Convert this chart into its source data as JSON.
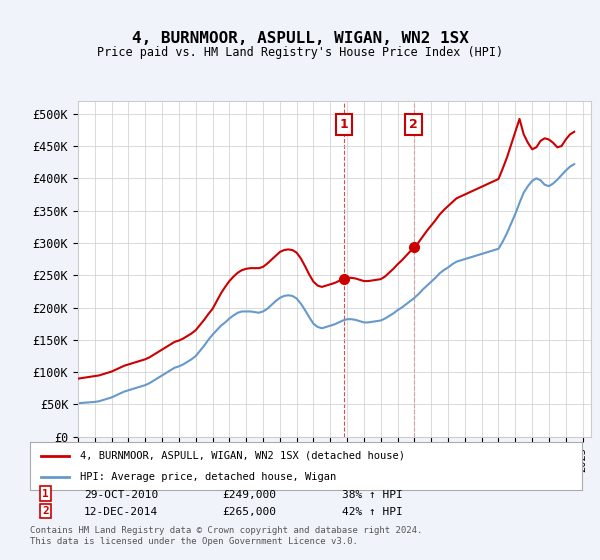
{
  "title": "4, BURNMOOR, ASPULL, WIGAN, WN2 1SX",
  "subtitle": "Price paid vs. HM Land Registry's House Price Index (HPI)",
  "ylabel_ticks": [
    "£0",
    "£50K",
    "£100K",
    "£150K",
    "£200K",
    "£250K",
    "£300K",
    "£350K",
    "£400K",
    "£450K",
    "£500K"
  ],
  "ytick_values": [
    0,
    50000,
    100000,
    150000,
    200000,
    250000,
    300000,
    350000,
    400000,
    450000,
    500000
  ],
  "ylim": [
    0,
    520000
  ],
  "xlim_start": 1995.0,
  "xlim_end": 2025.5,
  "hpi_color": "#6699cc",
  "sale_color": "#cc0000",
  "marker1_date": 2010.83,
  "marker1_label": "1",
  "marker1_price": 249000,
  "marker1_text": "29-OCT-2010",
  "marker1_pct": "38% ↑ HPI",
  "marker2_date": 2014.95,
  "marker2_label": "2",
  "marker2_price": 265000,
  "marker2_text": "12-DEC-2014",
  "marker2_pct": "42% ↑ HPI",
  "legend_label_red": "4, BURNMOOR, ASPULL, WIGAN, WN2 1SX (detached house)",
  "legend_label_blue": "HPI: Average price, detached house, Wigan",
  "footer_line1": "Contains HM Land Registry data © Crown copyright and database right 2024.",
  "footer_line2": "This data is licensed under the Open Government Licence v3.0.",
  "background_color": "#f0f4fa",
  "plot_bg_color": "#ffffff",
  "hpi_data_x": [
    1995.0,
    1995.25,
    1995.5,
    1995.75,
    1996.0,
    1996.25,
    1996.5,
    1996.75,
    1997.0,
    1997.25,
    1997.5,
    1997.75,
    1998.0,
    1998.25,
    1998.5,
    1998.75,
    1999.0,
    1999.25,
    1999.5,
    1999.75,
    2000.0,
    2000.25,
    2000.5,
    2000.75,
    2001.0,
    2001.25,
    2001.5,
    2001.75,
    2002.0,
    2002.25,
    2002.5,
    2002.75,
    2003.0,
    2003.25,
    2003.5,
    2003.75,
    2004.0,
    2004.25,
    2004.5,
    2004.75,
    2005.0,
    2005.25,
    2005.5,
    2005.75,
    2006.0,
    2006.25,
    2006.5,
    2006.75,
    2007.0,
    2007.25,
    2007.5,
    2007.75,
    2008.0,
    2008.25,
    2008.5,
    2008.75,
    2009.0,
    2009.25,
    2009.5,
    2009.75,
    2010.0,
    2010.25,
    2010.5,
    2010.75,
    2011.0,
    2011.25,
    2011.5,
    2011.75,
    2012.0,
    2012.25,
    2012.5,
    2012.75,
    2013.0,
    2013.25,
    2013.5,
    2013.75,
    2014.0,
    2014.25,
    2014.5,
    2014.75,
    2015.0,
    2015.25,
    2015.5,
    2015.75,
    2016.0,
    2016.25,
    2016.5,
    2016.75,
    2017.0,
    2017.25,
    2017.5,
    2017.75,
    2018.0,
    2018.25,
    2018.5,
    2018.75,
    2019.0,
    2019.25,
    2019.5,
    2019.75,
    2020.0,
    2020.25,
    2020.5,
    2020.75,
    2021.0,
    2021.25,
    2021.5,
    2021.75,
    2022.0,
    2022.25,
    2022.5,
    2022.75,
    2023.0,
    2023.25,
    2023.5,
    2023.75,
    2024.0,
    2024.25,
    2024.5
  ],
  "hpi_data_y": [
    52000,
    52500,
    53000,
    53500,
    54000,
    55000,
    57000,
    59000,
    61000,
    64000,
    67000,
    70000,
    72000,
    74000,
    76000,
    78000,
    80000,
    83000,
    87000,
    91000,
    95000,
    99000,
    103000,
    107000,
    109000,
    112000,
    116000,
    120000,
    125000,
    133000,
    141000,
    150000,
    158000,
    165000,
    172000,
    177000,
    183000,
    188000,
    192000,
    194000,
    194000,
    194000,
    193000,
    192000,
    194000,
    198000,
    204000,
    210000,
    215000,
    218000,
    219000,
    218000,
    214000,
    206000,
    196000,
    185000,
    175000,
    170000,
    168000,
    170000,
    172000,
    174000,
    177000,
    180000,
    182000,
    182000,
    181000,
    179000,
    177000,
    177000,
    178000,
    179000,
    180000,
    183000,
    187000,
    191000,
    196000,
    200000,
    205000,
    210000,
    215000,
    221000,
    228000,
    234000,
    240000,
    246000,
    253000,
    258000,
    262000,
    267000,
    271000,
    273000,
    275000,
    277000,
    279000,
    281000,
    283000,
    285000,
    287000,
    289000,
    291000,
    302000,
    315000,
    330000,
    345000,
    362000,
    378000,
    388000,
    396000,
    400000,
    397000,
    390000,
    388000,
    392000,
    398000,
    405000,
    412000,
    418000,
    422000
  ],
  "red_data_x": [
    1995.0,
    1995.25,
    1995.5,
    1995.75,
    1996.0,
    1996.25,
    1996.5,
    1996.75,
    1997.0,
    1997.25,
    1997.5,
    1997.75,
    1998.0,
    1998.25,
    1998.5,
    1998.75,
    1999.0,
    1999.25,
    1999.5,
    1999.75,
    2000.0,
    2000.25,
    2000.5,
    2000.75,
    2001.0,
    2001.25,
    2001.5,
    2001.75,
    2002.0,
    2002.25,
    2002.5,
    2002.75,
    2003.0,
    2003.25,
    2003.5,
    2003.75,
    2004.0,
    2004.25,
    2004.5,
    2004.75,
    2005.0,
    2005.25,
    2005.5,
    2005.75,
    2006.0,
    2006.25,
    2006.5,
    2006.75,
    2007.0,
    2007.25,
    2007.5,
    2007.75,
    2008.0,
    2008.25,
    2008.5,
    2008.75,
    2009.0,
    2009.25,
    2009.5,
    2009.75,
    2010.0,
    2010.25,
    2010.5,
    2010.75,
    2011.0,
    2011.25,
    2011.5,
    2011.75,
    2012.0,
    2012.25,
    2012.5,
    2012.75,
    2013.0,
    2013.25,
    2013.5,
    2013.75,
    2014.0,
    2014.25,
    2014.5,
    2014.75,
    2015.0,
    2015.25,
    2015.5,
    2015.75,
    2016.0,
    2016.25,
    2016.5,
    2016.75,
    2017.0,
    2017.25,
    2017.5,
    2017.75,
    2018.0,
    2018.25,
    2018.5,
    2018.75,
    2019.0,
    2019.25,
    2019.5,
    2019.75,
    2020.0,
    2020.25,
    2020.5,
    2020.75,
    2021.0,
    2021.25,
    2021.5,
    2021.75,
    2022.0,
    2022.25,
    2022.5,
    2022.75,
    2023.0,
    2023.25,
    2023.5,
    2023.75,
    2024.0,
    2024.25,
    2024.5
  ],
  "red_data_y": [
    90000,
    91000,
    92000,
    93000,
    94000,
    95000,
    97000,
    99000,
    101000,
    104000,
    107000,
    110000,
    112000,
    114000,
    116000,
    118000,
    120000,
    123000,
    127000,
    131000,
    135000,
    139000,
    143000,
    147000,
    149000,
    152000,
    156000,
    160000,
    165000,
    173000,
    181000,
    190000,
    198000,
    210000,
    222000,
    232000,
    241000,
    248000,
    254000,
    258000,
    260000,
    261000,
    261000,
    261000,
    263000,
    268000,
    274000,
    280000,
    286000,
    289000,
    290000,
    289000,
    285000,
    276000,
    264000,
    251000,
    240000,
    234000,
    232000,
    234000,
    236000,
    238000,
    241000,
    244000,
    246000,
    246000,
    245000,
    243000,
    241000,
    241000,
    242000,
    243000,
    244000,
    248000,
    254000,
    260000,
    267000,
    273000,
    280000,
    287000,
    293000,
    301000,
    310000,
    319000,
    327000,
    335000,
    344000,
    351000,
    357000,
    363000,
    369000,
    372000,
    375000,
    378000,
    381000,
    384000,
    387000,
    390000,
    393000,
    396000,
    399000,
    415000,
    432000,
    452000,
    472000,
    492000,
    468000,
    455000,
    445000,
    448000,
    458000,
    462000,
    460000,
    455000,
    448000,
    450000,
    460000,
    468000,
    472000
  ]
}
